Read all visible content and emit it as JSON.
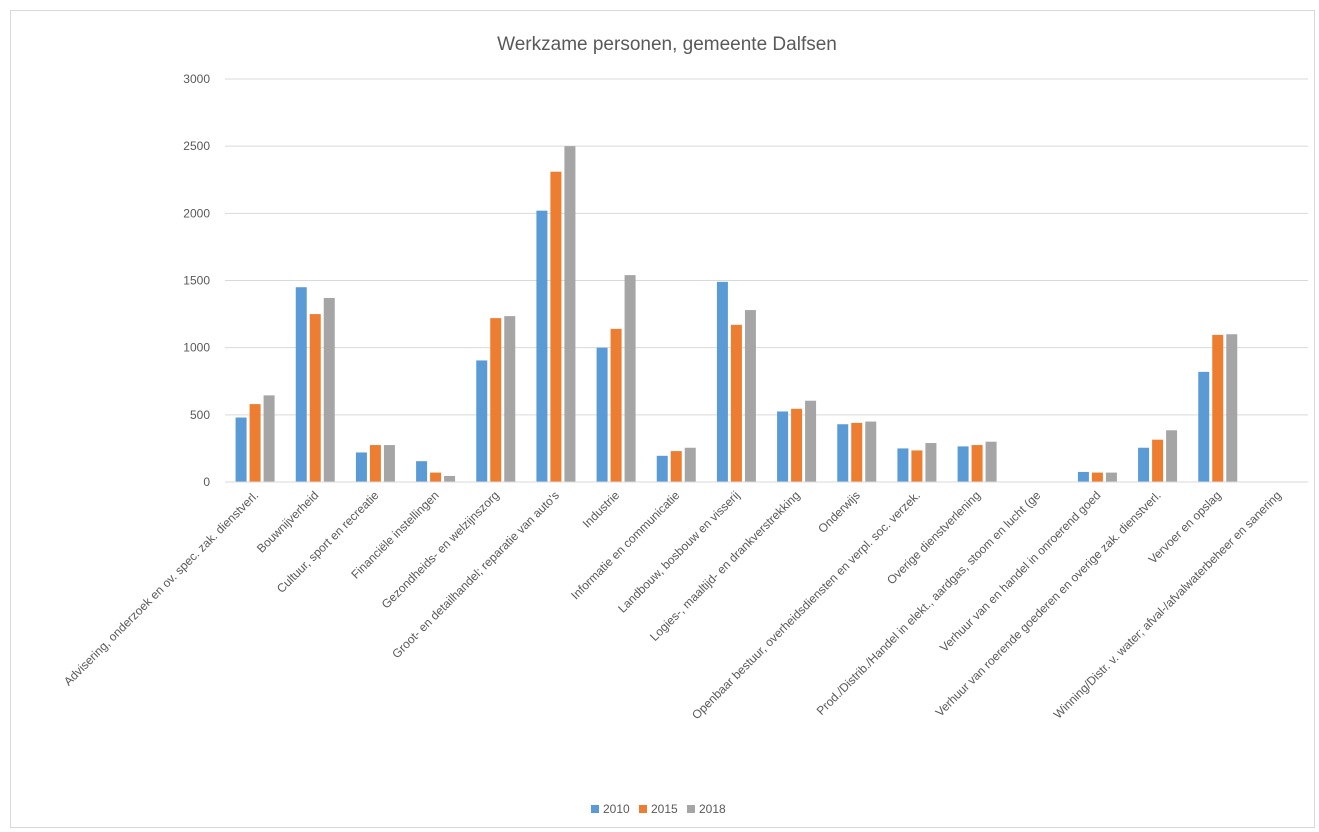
{
  "chart_data": {
    "type": "bar",
    "title": "Werkzame personen, gemeente Dalfsen",
    "xlabel": "",
    "ylabel": "",
    "ylim": [
      0,
      3000
    ],
    "yticks": [
      "0",
      "500",
      "1000",
      "1500",
      "2000",
      "2500",
      "3000"
    ],
    "grid": true,
    "legend_position": "bottom",
    "categories": [
      "Advisering, onderzoek en ov. spec. zak. dienstverl.",
      "Bouwnijverheid",
      "Cultuur, sport en recreatie",
      "Financiële instellingen",
      "Gezondheids- en welzijnszorg",
      "Groot- en detailhandel; reparatie van auto's",
      "Industrie",
      "Informatie en communicatie",
      "Landbouw, bosbouw en visserij",
      "Logies-, maaltijd- en drankverstrekking",
      "Onderwijs",
      "Openbaar bestuur, overheidsdiensten en verpl. soc. verzek.",
      "Overige dienstverlening",
      "Prod./Distrib./Handel in elekt., aardgas, stoom en lucht (ge",
      "Verhuur van en handel in onroerend goed",
      "Verhuur van roerende goederen en overige zak. dienstverl.",
      "Vervoer en opslag",
      "Winning/Distr. v. water; afval-/afvalwaterbeheer en sanering"
    ],
    "series": [
      {
        "name": "2010",
        "color": "#5b9bd5",
        "values": [
          480,
          1450,
          220,
          155,
          905,
          2020,
          1000,
          195,
          1490,
          525,
          430,
          250,
          265,
          0,
          75,
          255,
          820,
          0
        ]
      },
      {
        "name": "2015",
        "color": "#ed7d31",
        "values": [
          580,
          1250,
          275,
          70,
          1220,
          2310,
          1140,
          230,
          1170,
          545,
          440,
          235,
          275,
          0,
          70,
          315,
          1095,
          0
        ]
      },
      {
        "name": "2018",
        "color": "#a5a5a5",
        "values": [
          645,
          1370,
          275,
          45,
          1235,
          2500,
          1540,
          255,
          1280,
          605,
          450,
          290,
          300,
          0,
          70,
          385,
          1100,
          0
        ]
      }
    ]
  }
}
